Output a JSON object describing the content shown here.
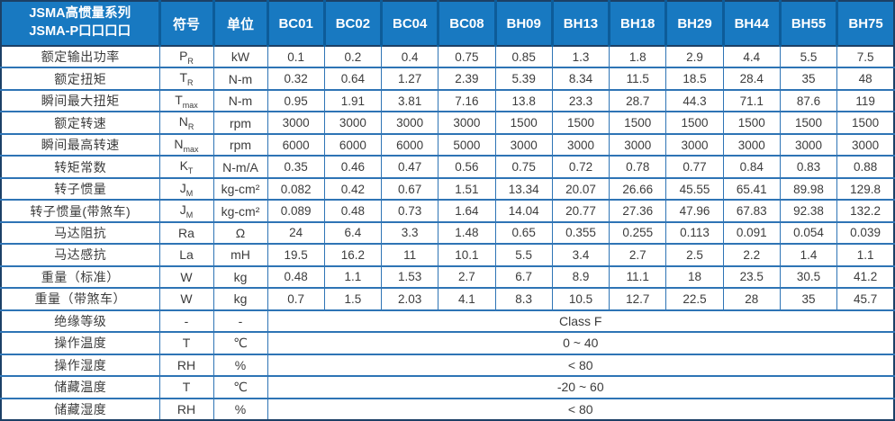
{
  "table": {
    "title_line1": "JSMA高惯量系列",
    "title_line2": "JSMA-P口口口口",
    "symbol_header": "符号",
    "unit_header": "单位",
    "models": [
      "BC01",
      "BC02",
      "BC04",
      "BC08",
      "BH09",
      "BH13",
      "BH18",
      "BH29",
      "BH44",
      "BH55",
      "BH75"
    ],
    "rows": [
      {
        "label": "额定输出功率",
        "symbol": "P",
        "sub": "R",
        "unit": "kW",
        "values": [
          "0.1",
          "0.2",
          "0.4",
          "0.75",
          "0.85",
          "1.3",
          "1.8",
          "2.9",
          "4.4",
          "5.5",
          "7.5"
        ]
      },
      {
        "label": "额定扭矩",
        "symbol": "T",
        "sub": "R",
        "unit": "N-m",
        "values": [
          "0.32",
          "0.64",
          "1.27",
          "2.39",
          "5.39",
          "8.34",
          "11.5",
          "18.5",
          "28.4",
          "35",
          "48"
        ]
      },
      {
        "label": "瞬间最大扭矩",
        "symbol": "T",
        "sub": "max",
        "unit": "N-m",
        "values": [
          "0.95",
          "1.91",
          "3.81",
          "7.16",
          "13.8",
          "23.3",
          "28.7",
          "44.3",
          "71.1",
          "87.6",
          "119"
        ]
      },
      {
        "label": "额定转速",
        "symbol": "N",
        "sub": "R",
        "unit": "rpm",
        "values": [
          "3000",
          "3000",
          "3000",
          "3000",
          "1500",
          "1500",
          "1500",
          "1500",
          "1500",
          "1500",
          "1500"
        ]
      },
      {
        "label": "瞬间最高转速",
        "symbol": "N",
        "sub": "max",
        "unit": "rpm",
        "values": [
          "6000",
          "6000",
          "6000",
          "5000",
          "3000",
          "3000",
          "3000",
          "3000",
          "3000",
          "3000",
          "3000"
        ]
      },
      {
        "label": "转矩常数",
        "symbol": "K",
        "sub": "T",
        "unit": "N-m/A",
        "values": [
          "0.35",
          "0.46",
          "0.47",
          "0.56",
          "0.75",
          "0.72",
          "0.78",
          "0.77",
          "0.84",
          "0.83",
          "0.88"
        ]
      },
      {
        "label": "转子惯量",
        "symbol": "J",
        "sub": "M",
        "unit": "kg-cm²",
        "values": [
          "0.082",
          "0.42",
          "0.67",
          "1.51",
          "13.34",
          "20.07",
          "26.66",
          "45.55",
          "65.41",
          "89.98",
          "129.8"
        ]
      },
      {
        "label": "转子惯量(带煞车)",
        "symbol": "J",
        "sub": "M",
        "unit": "kg-cm²",
        "values": [
          "0.089",
          "0.48",
          "0.73",
          "1.64",
          "14.04",
          "20.77",
          "27.36",
          "47.96",
          "67.83",
          "92.38",
          "132.2"
        ]
      },
      {
        "label": "马达阻抗",
        "symbol": "Ra",
        "sub": "",
        "unit": "Ω",
        "values": [
          "24",
          "6.4",
          "3.3",
          "1.48",
          "0.65",
          "0.355",
          "0.255",
          "0.113",
          "0.091",
          "0.054",
          "0.039"
        ]
      },
      {
        "label": "马达感抗",
        "symbol": "La",
        "sub": "",
        "unit": "mH",
        "values": [
          "19.5",
          "16.2",
          "11",
          "10.1",
          "5.5",
          "3.4",
          "2.7",
          "2.5",
          "2.2",
          "1.4",
          "1.1"
        ]
      },
      {
        "label": "重量（标准）",
        "symbol": "W",
        "sub": "",
        "unit": "kg",
        "values": [
          "0.48",
          "1.1",
          "1.53",
          "2.7",
          "6.7",
          "8.9",
          "11.1",
          "18",
          "23.5",
          "30.5",
          "41.2"
        ]
      },
      {
        "label": "重量（带煞车）",
        "symbol": "W",
        "sub": "",
        "unit": "kg",
        "values": [
          "0.7",
          "1.5",
          "2.03",
          "4.1",
          "8.3",
          "10.5",
          "12.7",
          "22.5",
          "28",
          "35",
          "45.7"
        ]
      }
    ],
    "merged_rows": [
      {
        "label": "绝缘等级",
        "symbol": "-",
        "sub": "",
        "unit": "-",
        "value": "Class F"
      },
      {
        "label": "操作温度",
        "symbol": "T",
        "sub": "",
        "unit": "℃",
        "value": "0 ~ 40"
      },
      {
        "label": "操作湿度",
        "symbol": "RH",
        "sub": "",
        "unit": "%",
        "value": "< 80"
      },
      {
        "label": "储藏温度",
        "symbol": "T",
        "sub": "",
        "unit": "℃",
        "value": "-20 ~ 60"
      },
      {
        "label": "储藏湿度",
        "symbol": "RH",
        "sub": "",
        "unit": "%",
        "value": "< 80"
      }
    ],
    "colors": {
      "header_bg": "#1879c1",
      "header_divider": "#0d5c99",
      "grid_border": "#2e74b5",
      "outer_border": "#1c4066",
      "header_text": "#ffffff",
      "body_text": "#3c3c3c"
    }
  }
}
